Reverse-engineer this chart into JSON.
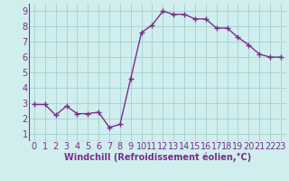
{
  "x": [
    0,
    1,
    2,
    3,
    4,
    5,
    6,
    7,
    8,
    9,
    10,
    11,
    12,
    13,
    14,
    15,
    16,
    17,
    18,
    19,
    20,
    21,
    22,
    23
  ],
  "y": [
    2.9,
    2.9,
    2.2,
    2.8,
    2.3,
    2.3,
    2.4,
    1.4,
    1.6,
    4.6,
    7.6,
    8.1,
    9.0,
    8.8,
    8.8,
    8.5,
    8.5,
    7.9,
    7.9,
    7.3,
    6.8,
    6.2,
    6.0,
    6.0
  ],
  "line_color": "#7b2d8b",
  "marker": "+",
  "marker_size": 4,
  "marker_linewidth": 1.0,
  "background_color": "#d0eeee",
  "grid_color": "#aad4d4",
  "xlabel": "Windchill (Refroidissement éolien,°C)",
  "xlabel_color": "#7b2d8b",
  "xlabel_fontsize": 7,
  "tick_color": "#7b2d8b",
  "tick_fontsize": 7,
  "xlim": [
    -0.5,
    23.5
  ],
  "ylim": [
    0.5,
    9.5
  ],
  "yticks": [
    1,
    2,
    3,
    4,
    5,
    6,
    7,
    8,
    9
  ],
  "xticks": [
    0,
    1,
    2,
    3,
    4,
    5,
    6,
    7,
    8,
    9,
    10,
    11,
    12,
    13,
    14,
    15,
    16,
    17,
    18,
    19,
    20,
    21,
    22,
    23
  ],
  "linewidth": 1.0
}
